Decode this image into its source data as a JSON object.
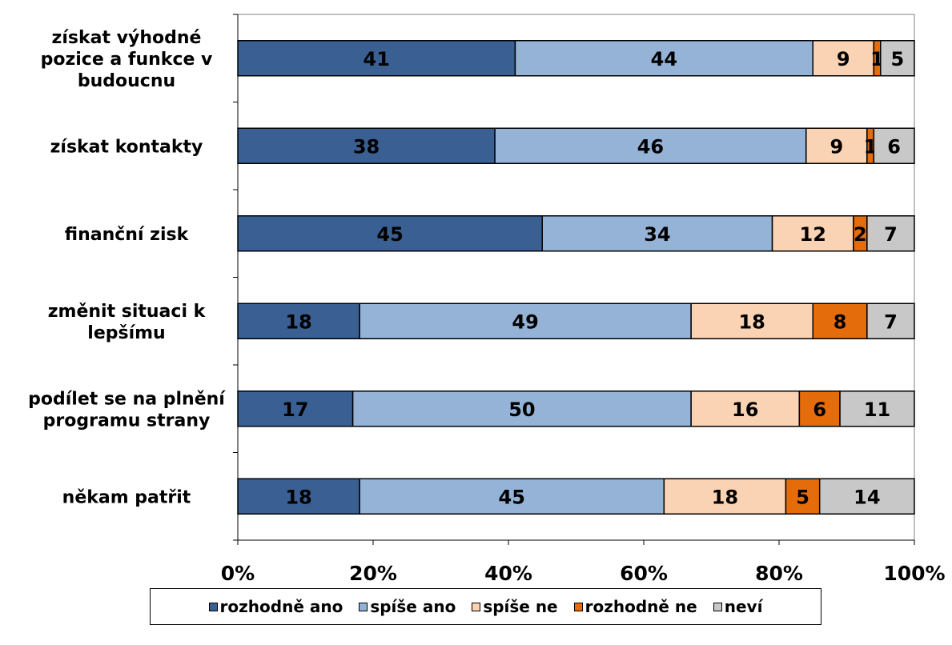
{
  "chart_data": {
    "type": "bar",
    "orientation": "horizontal",
    "stacked": "percent",
    "categories": [
      [
        "získat výhodné",
        "pozice a funkce v",
        "budoucnu"
      ],
      [
        "získat kontakty"
      ],
      [
        "finanční zisk"
      ],
      [
        "změnit situaci k",
        "lepšímu"
      ],
      [
        "podílet se na plnění",
        "programu strany"
      ],
      [
        "někam patřit"
      ]
    ],
    "series": [
      {
        "name": "rozhodně ano",
        "color": "#3A5F93",
        "values": [
          41,
          38,
          45,
          18,
          17,
          18
        ]
      },
      {
        "name": "spíše ano",
        "color": "#95B3D7",
        "values": [
          44,
          46,
          34,
          49,
          50,
          45
        ]
      },
      {
        "name": "spíše ne",
        "color": "#FAD3B4",
        "values": [
          9,
          9,
          12,
          18,
          16,
          18
        ]
      },
      {
        "name": "rozhodně ne",
        "color": "#E46C0A",
        "values": [
          1,
          1,
          2,
          8,
          6,
          5
        ]
      },
      {
        "name": "neví",
        "color": "#C8C8C8",
        "values": [
          5,
          6,
          7,
          7,
          11,
          14
        ]
      }
    ],
    "x_ticks": [
      "0%",
      "20%",
      "40%",
      "60%",
      "80%",
      "100%"
    ],
    "xlim": [
      0,
      100
    ],
    "grid": false,
    "legend_position": "bottom",
    "title": "",
    "xlabel": "",
    "ylabel": ""
  }
}
